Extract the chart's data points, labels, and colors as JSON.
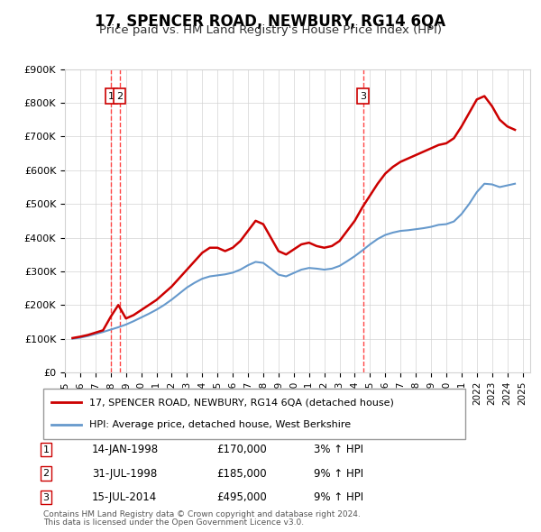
{
  "title": "17, SPENCER ROAD, NEWBURY, RG14 6QA",
  "subtitle": "Price paid vs. HM Land Registry's House Price Index (HPI)",
  "legend_line1": "17, SPENCER ROAD, NEWBURY, RG14 6QA (detached house)",
  "legend_line2": "HPI: Average price, detached house, West Berkshire",
  "footer1": "Contains HM Land Registry data © Crown copyright and database right 2024.",
  "footer2": "This data is licensed under the Open Government Licence v3.0.",
  "transactions": [
    {
      "num": 1,
      "date": "14-JAN-1998",
      "price": "£170,000",
      "hpi": "3% ↑ HPI",
      "year": 1998.04
    },
    {
      "num": 2,
      "date": "31-JUL-1998",
      "price": "£185,000",
      "hpi": "9% ↑ HPI",
      "year": 1998.58
    },
    {
      "num": 3,
      "date": "15-JUL-2014",
      "price": "£495,000",
      "hpi": "9% ↑ HPI",
      "year": 2014.54
    }
  ],
  "price_paid_color": "#cc0000",
  "hpi_color": "#6699cc",
  "vline_color": "#ff4444",
  "marker_bg": "#ffffff",
  "marker_border": "#cc0000",
  "ylim": [
    0,
    900000
  ],
  "yticks": [
    0,
    100000,
    200000,
    300000,
    400000,
    500000,
    600000,
    700000,
    800000,
    900000
  ],
  "ytick_labels": [
    "£0",
    "£100K",
    "£200K",
    "£300K",
    "£400K",
    "£500K",
    "£600K",
    "£700K",
    "£800K",
    "£900K"
  ],
  "xlim_start": 1995.0,
  "xlim_end": 2025.5,
  "hpi_data": {
    "years": [
      1995.5,
      1996.0,
      1996.5,
      1997.0,
      1997.5,
      1998.0,
      1998.5,
      1999.0,
      1999.5,
      2000.0,
      2000.5,
      2001.0,
      2001.5,
      2002.0,
      2002.5,
      2003.0,
      2003.5,
      2004.0,
      2004.5,
      2005.0,
      2005.5,
      2006.0,
      2006.5,
      2007.0,
      2007.5,
      2008.0,
      2008.5,
      2009.0,
      2009.5,
      2010.0,
      2010.5,
      2011.0,
      2011.5,
      2012.0,
      2012.5,
      2013.0,
      2013.5,
      2014.0,
      2014.5,
      2015.0,
      2015.5,
      2016.0,
      2016.5,
      2017.0,
      2017.5,
      2018.0,
      2018.5,
      2019.0,
      2019.5,
      2020.0,
      2020.5,
      2021.0,
      2021.5,
      2022.0,
      2022.5,
      2023.0,
      2023.5,
      2024.0,
      2024.5
    ],
    "values": [
      100000,
      103000,
      108000,
      114000,
      120000,
      127000,
      134000,
      142000,
      152000,
      163000,
      174000,
      186000,
      200000,
      216000,
      234000,
      252000,
      266000,
      278000,
      285000,
      288000,
      291000,
      296000,
      305000,
      318000,
      328000,
      325000,
      308000,
      290000,
      285000,
      295000,
      305000,
      310000,
      308000,
      305000,
      308000,
      316000,
      330000,
      345000,
      362000,
      380000,
      396000,
      408000,
      415000,
      420000,
      422000,
      425000,
      428000,
      432000,
      438000,
      440000,
      448000,
      470000,
      500000,
      535000,
      560000,
      558000,
      550000,
      555000,
      560000
    ]
  },
  "price_paid_data": {
    "years": [
      1995.5,
      1996.0,
      1996.5,
      1997.0,
      1997.5,
      1998.0,
      1998.5,
      1999.0,
      1999.5,
      2000.0,
      2000.5,
      2001.0,
      2001.5,
      2002.0,
      2002.5,
      2003.0,
      2003.5,
      2004.0,
      2004.5,
      2005.0,
      2005.5,
      2006.0,
      2006.5,
      2007.0,
      2007.5,
      2008.0,
      2008.5,
      2009.0,
      2009.5,
      2010.0,
      2010.5,
      2011.0,
      2011.5,
      2012.0,
      2012.5,
      2013.0,
      2013.5,
      2014.0,
      2014.5,
      2015.0,
      2015.5,
      2016.0,
      2016.5,
      2017.0,
      2017.5,
      2018.0,
      2018.5,
      2019.0,
      2019.5,
      2020.0,
      2020.5,
      2021.0,
      2021.5,
      2022.0,
      2022.5,
      2023.0,
      2023.5,
      2024.0,
      2024.5
    ],
    "values": [
      102000,
      106000,
      111000,
      118000,
      125000,
      165000,
      200000,
      160000,
      170000,
      185000,
      200000,
      215000,
      235000,
      255000,
      280000,
      305000,
      330000,
      355000,
      370000,
      370000,
      360000,
      370000,
      390000,
      420000,
      450000,
      440000,
      400000,
      360000,
      350000,
      365000,
      380000,
      385000,
      375000,
      370000,
      375000,
      390000,
      420000,
      450000,
      490000,
      525000,
      560000,
      590000,
      610000,
      625000,
      635000,
      645000,
      655000,
      665000,
      675000,
      680000,
      695000,
      730000,
      770000,
      810000,
      820000,
      790000,
      750000,
      730000,
      720000
    ]
  }
}
